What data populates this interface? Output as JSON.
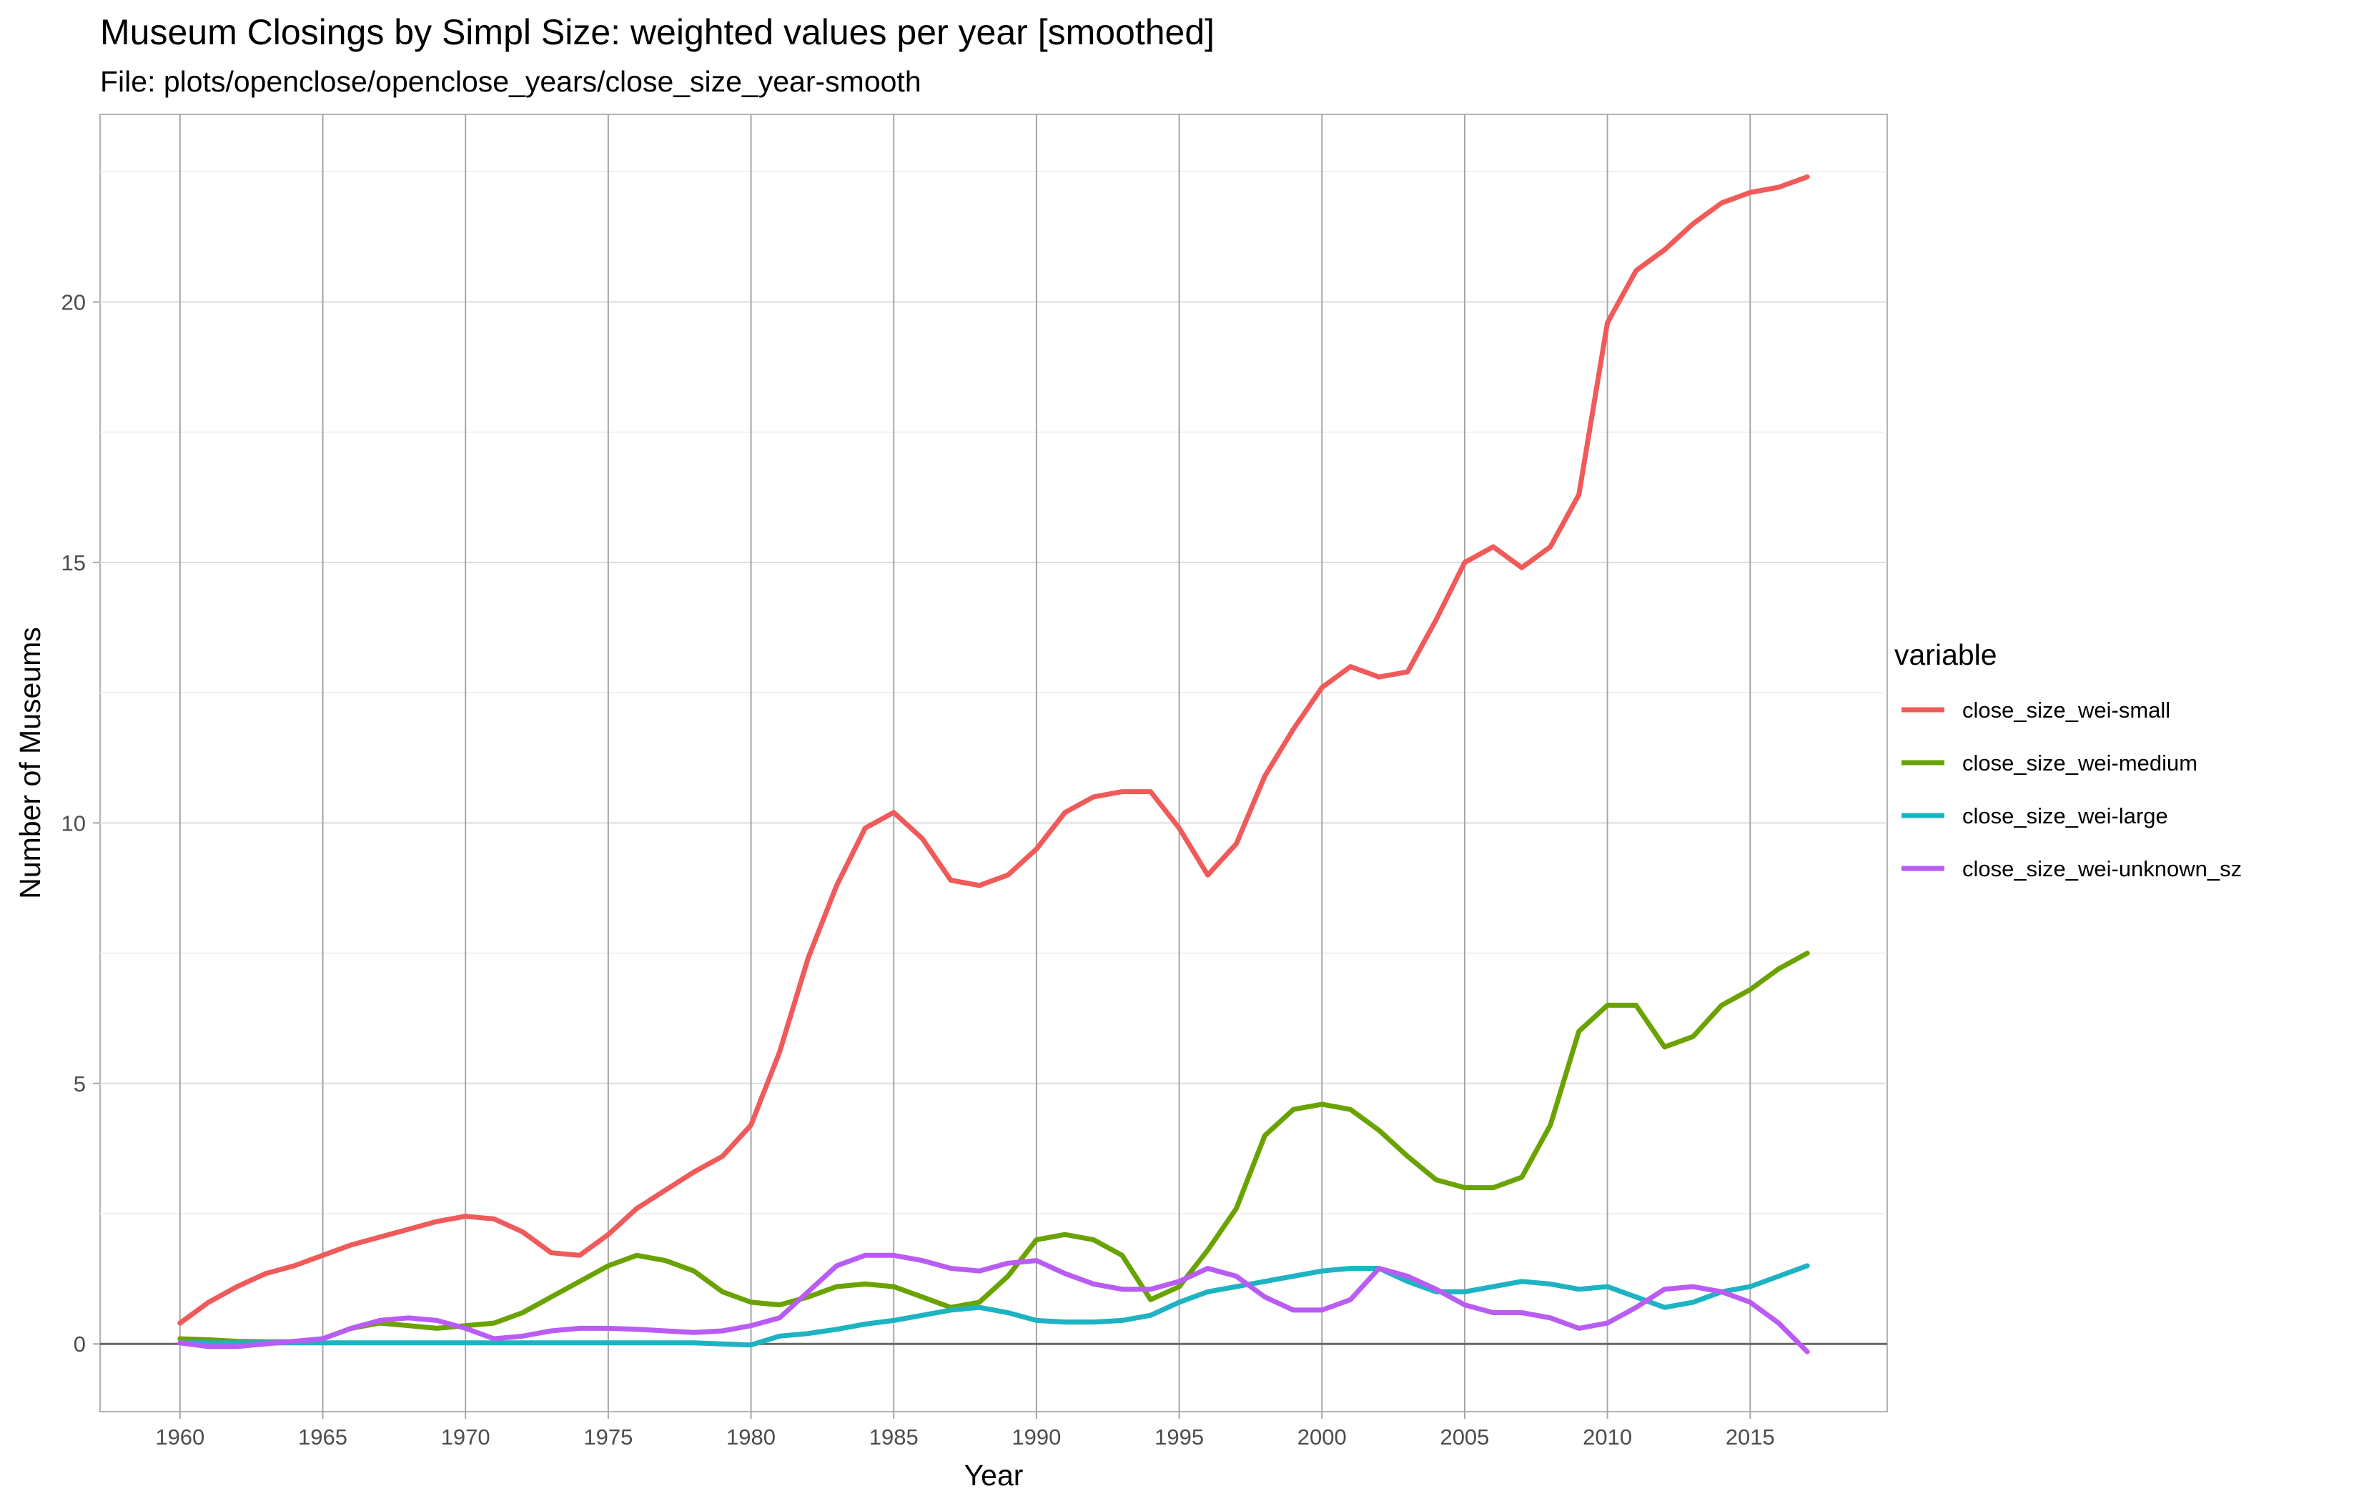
{
  "chart_data": {
    "type": "line",
    "title": "Museum Closings by Simpl Size: weighted values per year [smoothed]",
    "subtitle": "File: plots/openclose/openclose_years/close_size_year-smooth",
    "xlabel": "Year",
    "ylabel": "Number of Museums",
    "xlim": [
      1957.2,
      2019.8
    ],
    "ylim": [
      -1.3,
      23.6
    ],
    "x_ticks": [
      1960,
      1965,
      1970,
      1975,
      1980,
      1985,
      1990,
      1995,
      2000,
      2005,
      2010,
      2015
    ],
    "x_tick_labels": [
      "1960",
      "1965",
      "1970",
      "1975",
      "1980",
      "1985",
      "1990",
      "1995",
      "2000",
      "2005",
      "2010",
      "2015"
    ],
    "y_ticks": [
      0,
      5,
      10,
      15,
      20
    ],
    "y_tick_labels": [
      "0",
      "5",
      "10",
      "15",
      "20"
    ],
    "grid": true,
    "legend": {
      "title": "variable",
      "position": "right"
    },
    "series": [
      {
        "name": "close_size_wei-small",
        "color": "#F05A5A",
        "x": [
          1960,
          1961,
          1962,
          1963,
          1964,
          1965,
          1966,
          1967,
          1968,
          1969,
          1970,
          1971,
          1972,
          1973,
          1974,
          1975,
          1976,
          1977,
          1978,
          1979,
          1980,
          1981,
          1982,
          1983,
          1984,
          1985,
          1986,
          1987,
          1988,
          1989,
          1990,
          1991,
          1992,
          1993,
          1994,
          1995,
          1996,
          1997,
          1998,
          1999,
          2000,
          2001,
          2002,
          2003,
          2004,
          2005,
          2006,
          2007,
          2008,
          2009,
          2010,
          2011,
          2012,
          2013,
          2014,
          2015,
          2016,
          2017
        ],
        "y": [
          0.4,
          0.8,
          1.1,
          1.35,
          1.5,
          1.7,
          1.9,
          2.05,
          2.2,
          2.35,
          2.45,
          2.4,
          2.15,
          1.75,
          1.7,
          2.1,
          2.6,
          2.95,
          3.3,
          3.6,
          4.2,
          5.6,
          7.4,
          8.8,
          9.9,
          10.2,
          9.7,
          8.9,
          8.8,
          9.0,
          9.5,
          10.2,
          10.5,
          10.6,
          10.6,
          9.9,
          9.0,
          9.6,
          10.9,
          11.8,
          12.6,
          13.0,
          12.8,
          12.9,
          13.9,
          15.0,
          15.3,
          14.9,
          15.3,
          16.3,
          19.6,
          20.6,
          21.0,
          21.5,
          21.9,
          22.1,
          22.2,
          22.4
        ]
      },
      {
        "name": "close_size_wei-medium",
        "color": "#6AA300",
        "x": [
          1960,
          1961,
          1962,
          1963,
          1964,
          1965,
          1966,
          1967,
          1968,
          1969,
          1970,
          1971,
          1972,
          1973,
          1974,
          1975,
          1976,
          1977,
          1978,
          1979,
          1980,
          1981,
          1982,
          1983,
          1984,
          1985,
          1986,
          1987,
          1988,
          1989,
          1990,
          1991,
          1992,
          1993,
          1994,
          1995,
          1996,
          1997,
          1998,
          1999,
          2000,
          2001,
          2002,
          2003,
          2004,
          2005,
          2006,
          2007,
          2008,
          2009,
          2010,
          2011,
          2012,
          2013,
          2014,
          2015,
          2016,
          2017
        ],
        "y": [
          0.1,
          0.08,
          0.05,
          0.04,
          0.04,
          0.1,
          0.3,
          0.4,
          0.35,
          0.3,
          0.35,
          0.4,
          0.6,
          0.9,
          1.2,
          1.5,
          1.7,
          1.6,
          1.4,
          1.0,
          0.8,
          0.75,
          0.9,
          1.1,
          1.15,
          1.1,
          0.9,
          0.7,
          0.8,
          1.3,
          2.0,
          2.1,
          2.0,
          1.7,
          0.85,
          1.1,
          1.8,
          2.6,
          4.0,
          4.5,
          4.6,
          4.5,
          4.1,
          3.6,
          3.15,
          3.0,
          3.0,
          3.2,
          4.2,
          6.0,
          6.5,
          6.5,
          5.7,
          5.9,
          6.5,
          6.8,
          7.2,
          7.5
        ]
      },
      {
        "name": "close_size_wei-large",
        "color": "#1DB3C2",
        "x": [
          1960,
          1961,
          1962,
          1963,
          1964,
          1965,
          1966,
          1967,
          1968,
          1969,
          1970,
          1971,
          1972,
          1973,
          1974,
          1975,
          1976,
          1977,
          1978,
          1979,
          1980,
          1981,
          1982,
          1983,
          1984,
          1985,
          1986,
          1987,
          1988,
          1989,
          1990,
          1991,
          1992,
          1993,
          1994,
          1995,
          1996,
          1997,
          1998,
          1999,
          2000,
          2001,
          2002,
          2003,
          2004,
          2005,
          2006,
          2007,
          2008,
          2009,
          2010,
          2011,
          2012,
          2013,
          2014,
          2015,
          2016,
          2017
        ],
        "y": [
          0.02,
          0.02,
          0.02,
          0.02,
          0.02,
          0.02,
          0.02,
          0.02,
          0.02,
          0.02,
          0.02,
          0.02,
          0.02,
          0.02,
          0.02,
          0.02,
          0.02,
          0.02,
          0.02,
          0.0,
          -0.02,
          0.15,
          0.2,
          0.28,
          0.38,
          0.45,
          0.55,
          0.65,
          0.7,
          0.6,
          0.45,
          0.42,
          0.42,
          0.45,
          0.55,
          0.8,
          1.0,
          1.1,
          1.2,
          1.3,
          1.4,
          1.45,
          1.45,
          1.2,
          1.0,
          1.0,
          1.1,
          1.2,
          1.15,
          1.05,
          1.1,
          0.9,
          0.7,
          0.8,
          1.0,
          1.1,
          1.3,
          1.5
        ]
      },
      {
        "name": "close_size_wei-unknown_sz",
        "color": "#B95CF4",
        "x": [
          1960,
          1961,
          1962,
          1963,
          1964,
          1965,
          1966,
          1967,
          1968,
          1969,
          1970,
          1971,
          1972,
          1973,
          1974,
          1975,
          1976,
          1977,
          1978,
          1979,
          1980,
          1981,
          1982,
          1983,
          1984,
          1985,
          1986,
          1987,
          1988,
          1989,
          1990,
          1991,
          1992,
          1993,
          1994,
          1995,
          1996,
          1997,
          1998,
          1999,
          2000,
          2001,
          2002,
          2003,
          2004,
          2005,
          2006,
          2007,
          2008,
          2009,
          2010,
          2011,
          2012,
          2013,
          2014,
          2015,
          2016,
          2017
        ],
        "y": [
          0.02,
          -0.05,
          -0.05,
          0.0,
          0.05,
          0.1,
          0.3,
          0.45,
          0.5,
          0.45,
          0.3,
          0.1,
          0.15,
          0.25,
          0.3,
          0.3,
          0.28,
          0.25,
          0.22,
          0.25,
          0.35,
          0.5,
          1.0,
          1.5,
          1.7,
          1.7,
          1.6,
          1.45,
          1.4,
          1.55,
          1.6,
          1.35,
          1.15,
          1.05,
          1.05,
          1.2,
          1.45,
          1.3,
          0.9,
          0.65,
          0.65,
          0.85,
          1.45,
          1.3,
          1.05,
          0.75,
          0.6,
          0.6,
          0.5,
          0.3,
          0.4,
          0.7,
          1.05,
          1.1,
          1.0,
          0.8,
          0.4,
          -0.15
        ]
      }
    ]
  }
}
